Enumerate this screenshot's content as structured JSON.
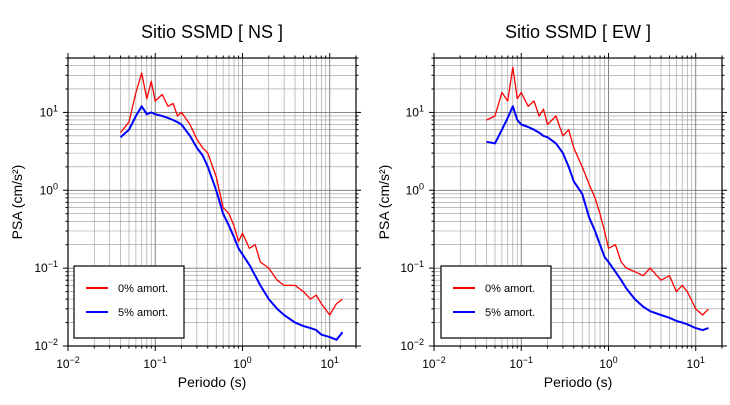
{
  "chart_data": [
    {
      "type": "line",
      "title": "Sitio SSMD [ NS ]",
      "xlabel": "Periodo (s)",
      "ylabel": "PSA (cm/s²)",
      "xscale": "log",
      "yscale": "log",
      "xlim": [
        0.01,
        20
      ],
      "ylim": [
        0.01,
        50
      ],
      "grid": true,
      "legend_position": "bottom-left",
      "x_ticks": [
        {
          "value": 0.01,
          "base": "10",
          "exp": "−2"
        },
        {
          "value": 0.1,
          "base": "10",
          "exp": "−1"
        },
        {
          "value": 1,
          "base": "10",
          "exp": "0"
        },
        {
          "value": 10,
          "base": "10",
          "exp": "1"
        }
      ],
      "y_ticks": [
        {
          "value": 0.01,
          "base": "10",
          "exp": "−2"
        },
        {
          "value": 0.1,
          "base": "10",
          "exp": "−1"
        },
        {
          "value": 1,
          "base": "10",
          "exp": "0"
        },
        {
          "value": 10,
          "base": "10",
          "exp": "1"
        }
      ],
      "x": [
        0.04,
        0.05,
        0.06,
        0.07,
        0.08,
        0.09,
        0.1,
        0.12,
        0.14,
        0.16,
        0.18,
        0.2,
        0.25,
        0.3,
        0.35,
        0.4,
        0.5,
        0.6,
        0.7,
        0.8,
        0.9,
        1.0,
        1.2,
        1.4,
        1.6,
        2.0,
        2.5,
        3.0,
        4.0,
        5.0,
        6.0,
        7.0,
        8.0,
        10.0,
        12.0,
        14.0
      ],
      "series": [
        {
          "name": "0% amort.",
          "color": "#ff0000",
          "values": [
            5.5,
            7.5,
            18.0,
            32.0,
            15.0,
            25.0,
            14.0,
            17.0,
            12.0,
            13.0,
            9.0,
            10.0,
            7.0,
            4.5,
            3.5,
            3.0,
            1.5,
            0.6,
            0.5,
            0.35,
            0.22,
            0.28,
            0.18,
            0.2,
            0.12,
            0.1,
            0.07,
            0.06,
            0.06,
            0.05,
            0.04,
            0.045,
            0.035,
            0.025,
            0.035,
            0.04
          ]
        },
        {
          "name": "5% amort.",
          "color": "#0000ff",
          "values": [
            4.8,
            6.0,
            9.0,
            12.0,
            9.5,
            10.0,
            9.5,
            9.0,
            8.5,
            8.0,
            7.5,
            7.0,
            5.0,
            3.5,
            2.8,
            2.0,
            1.0,
            0.5,
            0.35,
            0.25,
            0.18,
            0.15,
            0.11,
            0.08,
            0.06,
            0.04,
            0.03,
            0.025,
            0.02,
            0.018,
            0.017,
            0.016,
            0.014,
            0.013,
            0.012,
            0.015
          ]
        }
      ]
    },
    {
      "type": "line",
      "title": "Sitio SSMD [ EW ]",
      "xlabel": "Periodo (s)",
      "ylabel": "PSA (cm/s²)",
      "xscale": "log",
      "yscale": "log",
      "xlim": [
        0.01,
        20
      ],
      "ylim": [
        0.01,
        50
      ],
      "grid": true,
      "legend_position": "bottom-left",
      "x_ticks": [
        {
          "value": 0.01,
          "base": "10",
          "exp": "−2"
        },
        {
          "value": 0.1,
          "base": "10",
          "exp": "−1"
        },
        {
          "value": 1,
          "base": "10",
          "exp": "0"
        },
        {
          "value": 10,
          "base": "10",
          "exp": "1"
        }
      ],
      "y_ticks": [
        {
          "value": 0.01,
          "base": "10",
          "exp": "−2"
        },
        {
          "value": 0.1,
          "base": "10",
          "exp": "−1"
        },
        {
          "value": 1,
          "base": "10",
          "exp": "0"
        },
        {
          "value": 10,
          "base": "10",
          "exp": "1"
        }
      ],
      "x": [
        0.04,
        0.05,
        0.06,
        0.07,
        0.08,
        0.09,
        0.1,
        0.12,
        0.14,
        0.16,
        0.18,
        0.2,
        0.25,
        0.3,
        0.35,
        0.4,
        0.5,
        0.6,
        0.7,
        0.8,
        0.9,
        1.0,
        1.2,
        1.4,
        1.6,
        2.0,
        2.5,
        3.0,
        4.0,
        5.0,
        6.0,
        7.0,
        8.0,
        10.0,
        12.0,
        14.0
      ],
      "series": [
        {
          "name": "0% amort.",
          "color": "#ff0000",
          "values": [
            8.0,
            9.0,
            18.0,
            14.0,
            38.0,
            15.0,
            18.0,
            12.0,
            14.0,
            9.0,
            11.0,
            7.0,
            9.0,
            5.0,
            6.0,
            3.5,
            2.0,
            1.2,
            0.8,
            0.5,
            0.3,
            0.18,
            0.2,
            0.12,
            0.1,
            0.09,
            0.08,
            0.1,
            0.07,
            0.08,
            0.05,
            0.06,
            0.05,
            0.03,
            0.025,
            0.03
          ]
        },
        {
          "name": "5% amort.",
          "color": "#0000ff",
          "values": [
            4.2,
            4.0,
            6.0,
            8.5,
            12.0,
            8.0,
            7.0,
            6.5,
            6.0,
            5.5,
            5.0,
            4.8,
            4.0,
            3.0,
            2.0,
            1.3,
            0.9,
            0.45,
            0.3,
            0.2,
            0.14,
            0.12,
            0.09,
            0.07,
            0.055,
            0.04,
            0.032,
            0.028,
            0.025,
            0.023,
            0.021,
            0.02,
            0.019,
            0.017,
            0.016,
            0.017
          ]
        }
      ]
    }
  ]
}
